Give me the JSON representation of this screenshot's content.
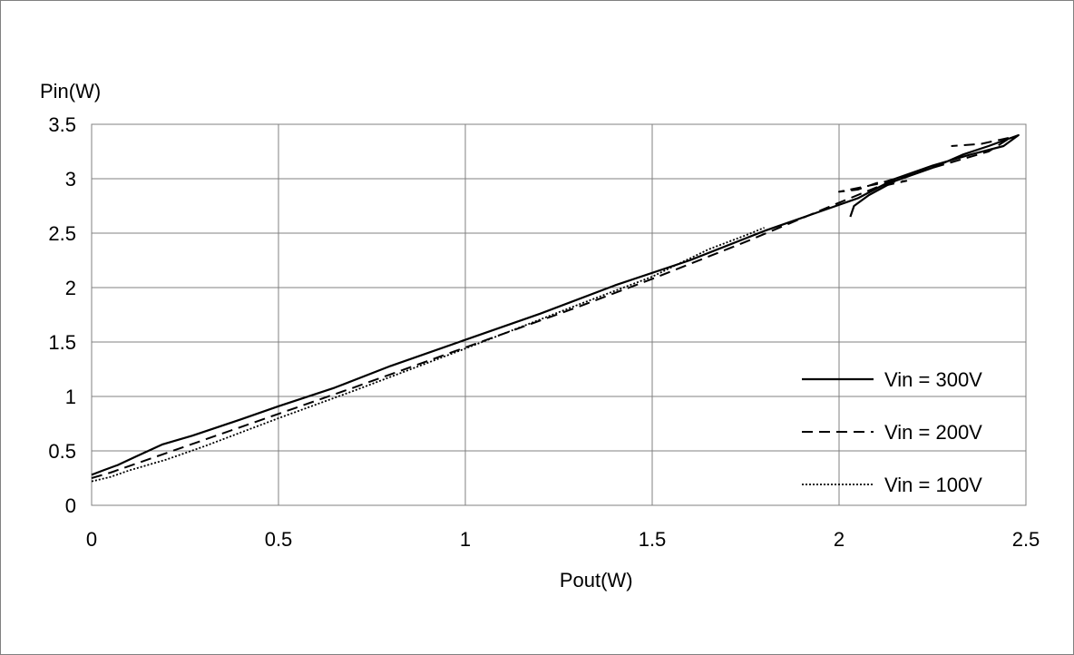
{
  "chart_data": {
    "type": "line",
    "title": "",
    "xlabel": "Pout(W)",
    "ylabel": "Pin(W)",
    "xlim": [
      0,
      2.5
    ],
    "ylim": [
      0,
      3.5
    ],
    "x_ticks": [
      "0",
      "0.5",
      "1",
      "1.5",
      "2",
      "2.5"
    ],
    "y_ticks": [
      "0",
      "0.5",
      "1",
      "1.5",
      "2",
      "2.5",
      "3",
      "3.5"
    ],
    "grid": true,
    "legend_position": "bottom-right",
    "series": [
      {
        "name": "Vin = 300V",
        "style": "solid",
        "x": [
          0,
          0.03,
          0.07,
          0.12,
          0.19,
          0.27,
          0.4,
          0.5,
          0.65,
          0.8,
          1.0,
          1.2,
          1.4,
          1.6,
          1.8,
          1.95,
          2.05,
          2.15,
          2.25,
          2.35,
          2.44,
          2.48,
          2.4,
          2.33,
          2.25,
          2.15,
          2.08,
          2.04,
          2.03
        ],
        "y": [
          0.28,
          0.32,
          0.37,
          0.45,
          0.56,
          0.64,
          0.79,
          0.91,
          1.08,
          1.28,
          1.52,
          1.76,
          2.02,
          2.25,
          2.52,
          2.7,
          2.82,
          3.0,
          3.12,
          3.22,
          3.3,
          3.4,
          3.3,
          3.22,
          3.1,
          2.98,
          2.85,
          2.75,
          2.65
        ]
      },
      {
        "name": "Vin = 200V",
        "style": "dashed",
        "x": [
          0,
          0.05,
          0.1,
          0.2,
          0.3,
          0.5,
          0.7,
          1.0,
          1.3,
          1.5,
          1.75,
          2.0,
          2.1,
          2.18,
          2.1,
          2.05,
          2.0,
          2.1,
          2.2,
          2.3,
          2.4,
          2.46,
          2.38,
          2.3
        ],
        "y": [
          0.25,
          0.3,
          0.36,
          0.48,
          0.6,
          0.84,
          1.08,
          1.45,
          1.82,
          2.08,
          2.42,
          2.78,
          2.92,
          2.98,
          2.96,
          2.9,
          2.88,
          2.95,
          3.05,
          3.15,
          3.25,
          3.38,
          3.32,
          3.3
        ]
      },
      {
        "name": "Vin = 100V",
        "style": "dotted",
        "x": [
          0,
          0.05,
          0.1,
          0.2,
          0.3,
          0.5,
          0.7,
          1.0,
          1.3,
          1.5,
          1.65,
          1.75,
          1.8
        ],
        "y": [
          0.22,
          0.26,
          0.32,
          0.42,
          0.54,
          0.8,
          1.05,
          1.44,
          1.84,
          2.1,
          2.35,
          2.48,
          2.55
        ]
      }
    ]
  }
}
